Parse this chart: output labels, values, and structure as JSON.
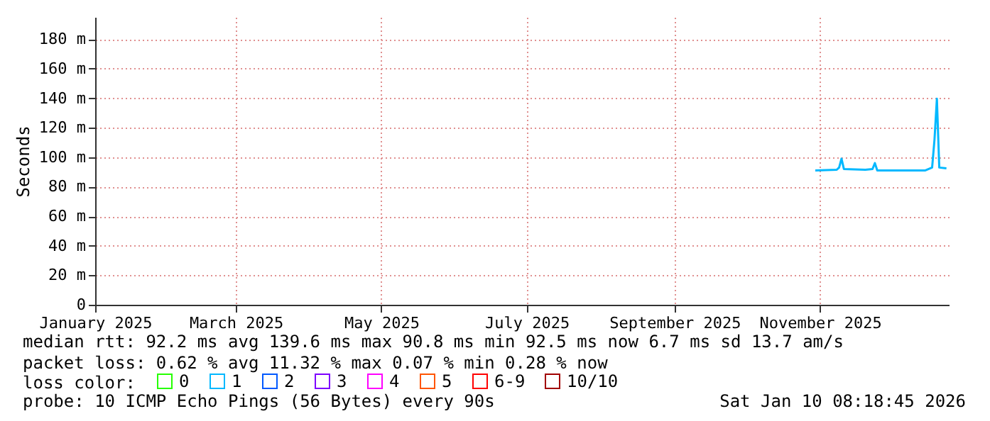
{
  "chart_data": {
    "type": "line",
    "ylabel": "Seconds",
    "xlim": [
      "2025-01-01",
      "2025-12-25"
    ],
    "xticks": [
      {
        "value": "2025-01-01",
        "label": "January 2025"
      },
      {
        "value": "2025-03-01",
        "label": "March 2025"
      },
      {
        "value": "2025-05-01",
        "label": "May 2025"
      },
      {
        "value": "2025-07-01",
        "label": "July 2025"
      },
      {
        "value": "2025-09-01",
        "label": "September 2025"
      },
      {
        "value": "2025-11-01",
        "label": "November 2025"
      }
    ],
    "ylim": [
      0,
      195
    ],
    "yticks": [
      0,
      {
        "value": 20,
        "label": "20 m"
      },
      {
        "value": 40,
        "label": "40 m"
      },
      {
        "value": 60,
        "label": "60 m"
      },
      {
        "value": 80,
        "label": "80 m"
      },
      {
        "value": 100,
        "label": "100 m"
      },
      {
        "value": 120,
        "label": "120 m"
      },
      {
        "value": 140,
        "label": "140 m"
      },
      {
        "value": 160,
        "label": "160 m"
      },
      {
        "value": 180,
        "label": "180 m"
      }
    ],
    "x": [
      "2025-10-30",
      "2025-11-08",
      "2025-11-09",
      "2025-11-10",
      "2025-11-11",
      "2025-11-20",
      "2025-11-23",
      "2025-11-24",
      "2025-11-25",
      "2025-12-05",
      "2025-12-15",
      "2025-12-18",
      "2025-12-19",
      "2025-12-20",
      "2025-12-21",
      "2025-12-24"
    ],
    "series": [
      {
        "name": "0",
        "color": "#26ff00",
        "values": [
          null,
          null,
          null,
          null,
          null,
          null,
          null,
          null,
          null,
          null,
          null,
          null,
          null,
          null,
          null,
          null
        ]
      },
      {
        "name": "1",
        "color": "#00b8ff",
        "values": [
          91,
          91.5,
          93,
          99,
          92,
          91.5,
          92,
          96,
          91,
          91,
          91,
          93,
          112,
          139.6,
          93,
          92.5
        ]
      },
      {
        "name": "2",
        "color": "#0059ff",
        "values": [
          null,
          null,
          null,
          null,
          null,
          null,
          null,
          null,
          null,
          null,
          null,
          null,
          null,
          null,
          null,
          null
        ]
      },
      {
        "name": "3",
        "color": "#7e00ff",
        "values": [
          null,
          null,
          null,
          null,
          null,
          null,
          null,
          null,
          null,
          null,
          null,
          null,
          null,
          null,
          null,
          null
        ]
      },
      {
        "name": "4",
        "color": "#ff00ff",
        "values": [
          null,
          null,
          null,
          null,
          null,
          null,
          null,
          null,
          null,
          null,
          null,
          null,
          null,
          null,
          null,
          null
        ]
      },
      {
        "name": "5",
        "color": "#ff5500",
        "values": [
          null,
          null,
          null,
          null,
          null,
          null,
          null,
          null,
          null,
          null,
          null,
          null,
          null,
          null,
          null,
          null
        ]
      },
      {
        "name": "6-9",
        "color": "#ff0000",
        "values": [
          null,
          null,
          null,
          null,
          null,
          null,
          null,
          null,
          null,
          null,
          null,
          null,
          null,
          null,
          null,
          null
        ]
      },
      {
        "name": "10/10",
        "color": "#a10000",
        "values": [
          null,
          null,
          null,
          null,
          null,
          null,
          null,
          null,
          null,
          null,
          null,
          null,
          null,
          null,
          null,
          null
        ]
      }
    ],
    "legend_title": "loss color:",
    "legend": "bottom left",
    "grid": true,
    "marker": "none",
    "line_style": "solid",
    "annotations": [
      "median rtt:  92.2 ms avg  139.6 ms max  90.8 ms min  92.5 ms now  6.7 ms sd  13.7   am/s",
      "packet loss: 0.62 % avg  11.32 % max  0.07 % min  0.28 % now",
      "probe:       10 ICMP Echo Pings (56 Bytes) every 90s",
      "Sat Jan 10 08:18:45 2026"
    ]
  }
}
